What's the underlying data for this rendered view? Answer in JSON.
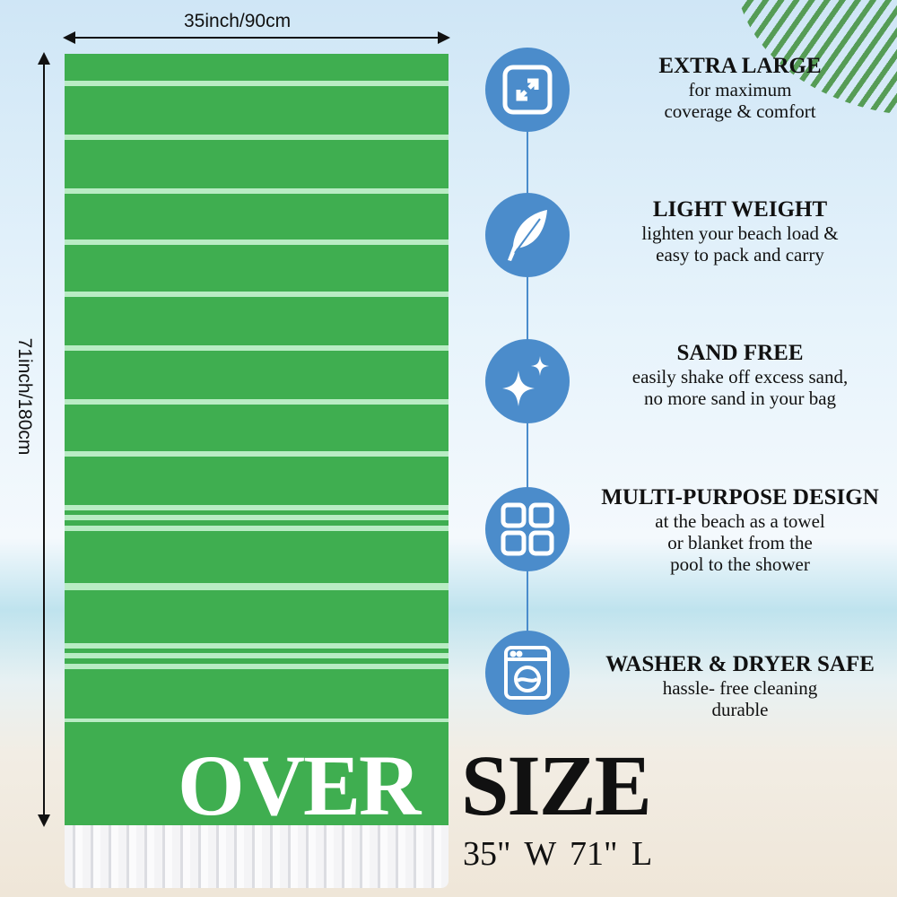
{
  "dimensions": {
    "width_label": "35inch/90cm",
    "height_label": "71inch/180cm"
  },
  "headline": {
    "over": "OVER",
    "size": "SIZE",
    "measure": "35\" W  71\" L"
  },
  "colors": {
    "towel": "#3fae50",
    "stripe": "#b9ecc4",
    "icon_circle": "#4b8ccb"
  },
  "features": [
    {
      "icon": "expand-icon",
      "title": "EXTRA LARGE",
      "lines": [
        "for maximum",
        "coverage & comfort"
      ]
    },
    {
      "icon": "feather-icon",
      "title": "LIGHT WEIGHT",
      "lines": [
        "lighten your beach load &",
        "easy to pack and carry"
      ]
    },
    {
      "icon": "sparkle-icon",
      "title": "SAND FREE",
      "lines": [
        "easily shake off excess sand,",
        "no more sand in your bag"
      ]
    },
    {
      "icon": "grid-icon",
      "title": "MULTI-PURPOSE DESIGN",
      "lines": [
        "at the beach as a towel",
        "or blanket from the",
        "pool to the shower"
      ]
    },
    {
      "icon": "washing-machine-icon",
      "title": "WASHER & DRYER SAFE",
      "lines": [
        "hassle- free cleaning",
        "durable"
      ]
    }
  ]
}
